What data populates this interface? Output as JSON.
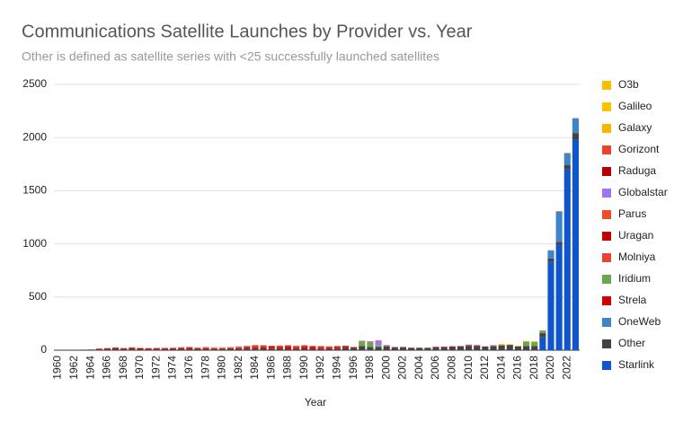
{
  "chart_data": {
    "type": "stacked_bar",
    "title": "Communications Satellite Launches by Provider vs. Year",
    "subtitle": "Other is defined as satellite series with <25 successfully launched satellites",
    "x_label": "Year",
    "categories": [
      "1960",
      null,
      "1962",
      null,
      "1964",
      null,
      "1966",
      null,
      "1968",
      null,
      "1970",
      null,
      "1972",
      null,
      "1974",
      null,
      "1976",
      null,
      "1978",
      null,
      "1980",
      null,
      "1982",
      null,
      "1984",
      null,
      "1986",
      null,
      "1988",
      null,
      "1990",
      null,
      "1992",
      null,
      "1994",
      null,
      "1996",
      null,
      "1998",
      null,
      "2000",
      null,
      "2002",
      null,
      "2004",
      null,
      "2006",
      null,
      "2008",
      null,
      "2010",
      null,
      "2012",
      null,
      "2014",
      null,
      "2016",
      null,
      "2018",
      null,
      "2020",
      null,
      "2022",
      null
    ],
    "ylim": [
      0,
      2500
    ],
    "yticks": [
      0,
      500,
      1000,
      1500,
      2000,
      2500
    ],
    "grid": true,
    "series": [
      {
        "name": "Starlink",
        "color": "#1155cc",
        "values": [
          0,
          0,
          0,
          0,
          0,
          0,
          0,
          0,
          0,
          0,
          0,
          0,
          0,
          0,
          0,
          0,
          0,
          0,
          0,
          0,
          0,
          0,
          0,
          0,
          0,
          0,
          0,
          0,
          0,
          0,
          0,
          0,
          0,
          0,
          0,
          0,
          0,
          0,
          0,
          0,
          0,
          0,
          0,
          0,
          0,
          0,
          0,
          0,
          0,
          0,
          0,
          0,
          0,
          0,
          0,
          0,
          0,
          0,
          0,
          120,
          833,
          989,
          1700,
          1980
        ]
      },
      {
        "name": "Other",
        "color": "#434343",
        "values": [
          2,
          3,
          4,
          5,
          6,
          8,
          10,
          12,
          10,
          12,
          8,
          8,
          8,
          10,
          10,
          12,
          12,
          10,
          12,
          10,
          10,
          12,
          12,
          14,
          14,
          12,
          10,
          12,
          12,
          10,
          12,
          10,
          10,
          12,
          10,
          20,
          20,
          40,
          30,
          30,
          35,
          25,
          25,
          20,
          20,
          20,
          25,
          25,
          30,
          35,
          40,
          40,
          35,
          35,
          45,
          50,
          35,
          40,
          40,
          40,
          30,
          30,
          40,
          60
        ]
      },
      {
        "name": "OneWeb",
        "color": "#3d85c6",
        "values": [
          0,
          0,
          0,
          0,
          0,
          0,
          0,
          0,
          0,
          0,
          0,
          0,
          0,
          0,
          0,
          0,
          0,
          0,
          0,
          0,
          0,
          0,
          0,
          0,
          0,
          0,
          0,
          0,
          0,
          0,
          0,
          0,
          0,
          0,
          0,
          0,
          0,
          0,
          0,
          0,
          0,
          0,
          0,
          0,
          0,
          0,
          0,
          0,
          0,
          0,
          0,
          0,
          0,
          0,
          0,
          0,
          0,
          0,
          0,
          6,
          74,
          284,
          110,
          140
        ]
      },
      {
        "name": "Strela",
        "color": "#cc0000",
        "values": [
          0,
          0,
          0,
          0,
          0,
          5,
          8,
          10,
          8,
          10,
          10,
          8,
          8,
          8,
          8,
          8,
          10,
          8,
          8,
          6,
          6,
          6,
          8,
          12,
          14,
          16,
          12,
          12,
          14,
          14,
          16,
          16,
          14,
          12,
          12,
          8,
          6,
          0,
          0,
          0,
          0,
          0,
          0,
          0,
          0,
          0,
          0,
          0,
          0,
          0,
          0,
          0,
          0,
          0,
          0,
          0,
          0,
          0,
          0,
          0,
          0,
          0,
          0,
          0
        ]
      },
      {
        "name": "Iridium",
        "color": "#6aa84f",
        "values": [
          0,
          0,
          0,
          0,
          0,
          0,
          0,
          0,
          0,
          0,
          0,
          0,
          0,
          0,
          0,
          0,
          0,
          0,
          0,
          0,
          0,
          0,
          0,
          0,
          0,
          0,
          0,
          0,
          0,
          0,
          0,
          0,
          0,
          0,
          0,
          0,
          0,
          45,
          40,
          14,
          0,
          0,
          2,
          0,
          0,
          0,
          0,
          0,
          0,
          0,
          0,
          0,
          0,
          0,
          0,
          0,
          0,
          40,
          35,
          15,
          0,
          0,
          0,
          0
        ]
      },
      {
        "name": "Molniya",
        "color": "#ea4335",
        "values": [
          0,
          0,
          0,
          0,
          1,
          2,
          2,
          4,
          3,
          4,
          4,
          4,
          5,
          4,
          5,
          5,
          5,
          4,
          4,
          3,
          3,
          4,
          4,
          4,
          4,
          4,
          3,
          3,
          3,
          3,
          2,
          2,
          2,
          2,
          2,
          1,
          2,
          1,
          1,
          1,
          0,
          1,
          1,
          1,
          1,
          0,
          0,
          0,
          0,
          0,
          0,
          0,
          0,
          0,
          0,
          0,
          0,
          0,
          0,
          0,
          0,
          0,
          0,
          0
        ]
      },
      {
        "name": "Uragan",
        "color": "#c00000",
        "values": [
          0,
          0,
          0,
          0,
          0,
          0,
          0,
          0,
          0,
          0,
          0,
          0,
          0,
          0,
          0,
          0,
          0,
          0,
          0,
          0,
          0,
          0,
          3,
          3,
          6,
          6,
          9,
          9,
          9,
          6,
          9,
          6,
          6,
          3,
          9,
          9,
          0,
          0,
          3,
          0,
          3,
          3,
          3,
          3,
          3,
          3,
          6,
          6,
          6,
          3,
          6,
          4,
          0,
          3,
          3,
          0,
          1,
          1,
          1,
          3,
          2,
          3,
          3,
          2
        ]
      },
      {
        "name": "Parus",
        "color": "#ee4b2b",
        "values": [
          0,
          0,
          0,
          0,
          0,
          0,
          0,
          0,
          0,
          0,
          0,
          0,
          0,
          0,
          1,
          2,
          2,
          2,
          3,
          3,
          3,
          4,
          4,
          4,
          4,
          4,
          4,
          4,
          4,
          4,
          3,
          3,
          3,
          3,
          2,
          2,
          2,
          2,
          2,
          2,
          1,
          1,
          1,
          1,
          1,
          1,
          1,
          0,
          1,
          1,
          1,
          0,
          0,
          0,
          0,
          0,
          0,
          0,
          0,
          0,
          0,
          0,
          0,
          0
        ]
      },
      {
        "name": "Globalstar",
        "color": "#9e74f5",
        "values": [
          0,
          0,
          0,
          0,
          0,
          0,
          0,
          0,
          0,
          0,
          0,
          0,
          0,
          0,
          0,
          0,
          0,
          0,
          0,
          0,
          0,
          0,
          0,
          0,
          0,
          0,
          0,
          0,
          0,
          0,
          0,
          0,
          0,
          0,
          0,
          0,
          0,
          0,
          8,
          44,
          8,
          0,
          0,
          0,
          0,
          0,
          0,
          4,
          0,
          0,
          6,
          6,
          0,
          8,
          0,
          0,
          0,
          0,
          0,
          0,
          0,
          0,
          0,
          0
        ]
      },
      {
        "name": "Raduga",
        "color": "#b50000",
        "values": [
          0,
          0,
          0,
          0,
          0,
          0,
          0,
          0,
          0,
          0,
          0,
          0,
          0,
          0,
          0,
          1,
          2,
          1,
          2,
          2,
          2,
          2,
          2,
          2,
          2,
          2,
          2,
          2,
          2,
          2,
          2,
          2,
          2,
          2,
          2,
          1,
          1,
          1,
          0,
          1,
          1,
          0,
          0,
          0,
          0,
          0,
          0,
          0,
          0,
          0,
          0,
          0,
          0,
          0,
          0,
          0,
          0,
          0,
          0,
          0,
          0,
          0,
          0,
          0
        ]
      },
      {
        "name": "Gorizont",
        "color": "#e8452c",
        "values": [
          0,
          0,
          0,
          0,
          0,
          0,
          0,
          0,
          0,
          0,
          0,
          0,
          0,
          0,
          0,
          0,
          0,
          0,
          1,
          2,
          2,
          1,
          2,
          2,
          3,
          2,
          2,
          2,
          3,
          2,
          3,
          2,
          2,
          2,
          2,
          1,
          1,
          0,
          0,
          0,
          0,
          0,
          0,
          0,
          0,
          0,
          0,
          0,
          0,
          0,
          0,
          0,
          0,
          0,
          0,
          0,
          0,
          0,
          0,
          0,
          0,
          0,
          0,
          0
        ]
      },
      {
        "name": "Galaxy",
        "color": "#f9b600",
        "values": [
          0,
          0,
          0,
          0,
          0,
          0,
          0,
          0,
          0,
          0,
          0,
          0,
          0,
          0,
          0,
          0,
          0,
          0,
          0,
          0,
          0,
          0,
          0,
          1,
          2,
          0,
          0,
          0,
          0,
          0,
          1,
          0,
          1,
          2,
          1,
          0,
          0,
          0,
          1,
          2,
          1,
          0,
          0,
          0,
          0,
          0,
          0,
          0,
          0,
          0,
          0,
          0,
          0,
          0,
          0,
          0,
          0,
          0,
          0,
          0,
          0,
          0,
          0,
          0
        ]
      },
      {
        "name": "Galileo",
        "color": "#fbc300",
        "values": [
          0,
          0,
          0,
          0,
          0,
          0,
          0,
          0,
          0,
          0,
          0,
          0,
          0,
          0,
          0,
          0,
          0,
          0,
          0,
          0,
          0,
          0,
          0,
          0,
          0,
          0,
          0,
          0,
          0,
          0,
          0,
          0,
          0,
          0,
          0,
          0,
          0,
          0,
          0,
          0,
          0,
          0,
          0,
          0,
          0,
          0,
          0,
          0,
          0,
          0,
          0,
          2,
          2,
          0,
          2,
          6,
          6,
          4,
          4,
          0,
          0,
          2,
          0,
          0
        ]
      },
      {
        "name": "O3b",
        "color": "#fbbc04",
        "values": [
          0,
          0,
          0,
          0,
          0,
          0,
          0,
          0,
          0,
          0,
          0,
          0,
          0,
          0,
          0,
          0,
          0,
          0,
          0,
          0,
          0,
          0,
          0,
          0,
          0,
          0,
          0,
          0,
          0,
          0,
          0,
          0,
          0,
          0,
          0,
          0,
          0,
          0,
          0,
          0,
          0,
          0,
          0,
          0,
          0,
          0,
          0,
          0,
          0,
          0,
          0,
          0,
          0,
          4,
          8,
          0,
          0,
          0,
          4,
          4,
          0,
          0,
          2,
          0
        ]
      }
    ]
  }
}
